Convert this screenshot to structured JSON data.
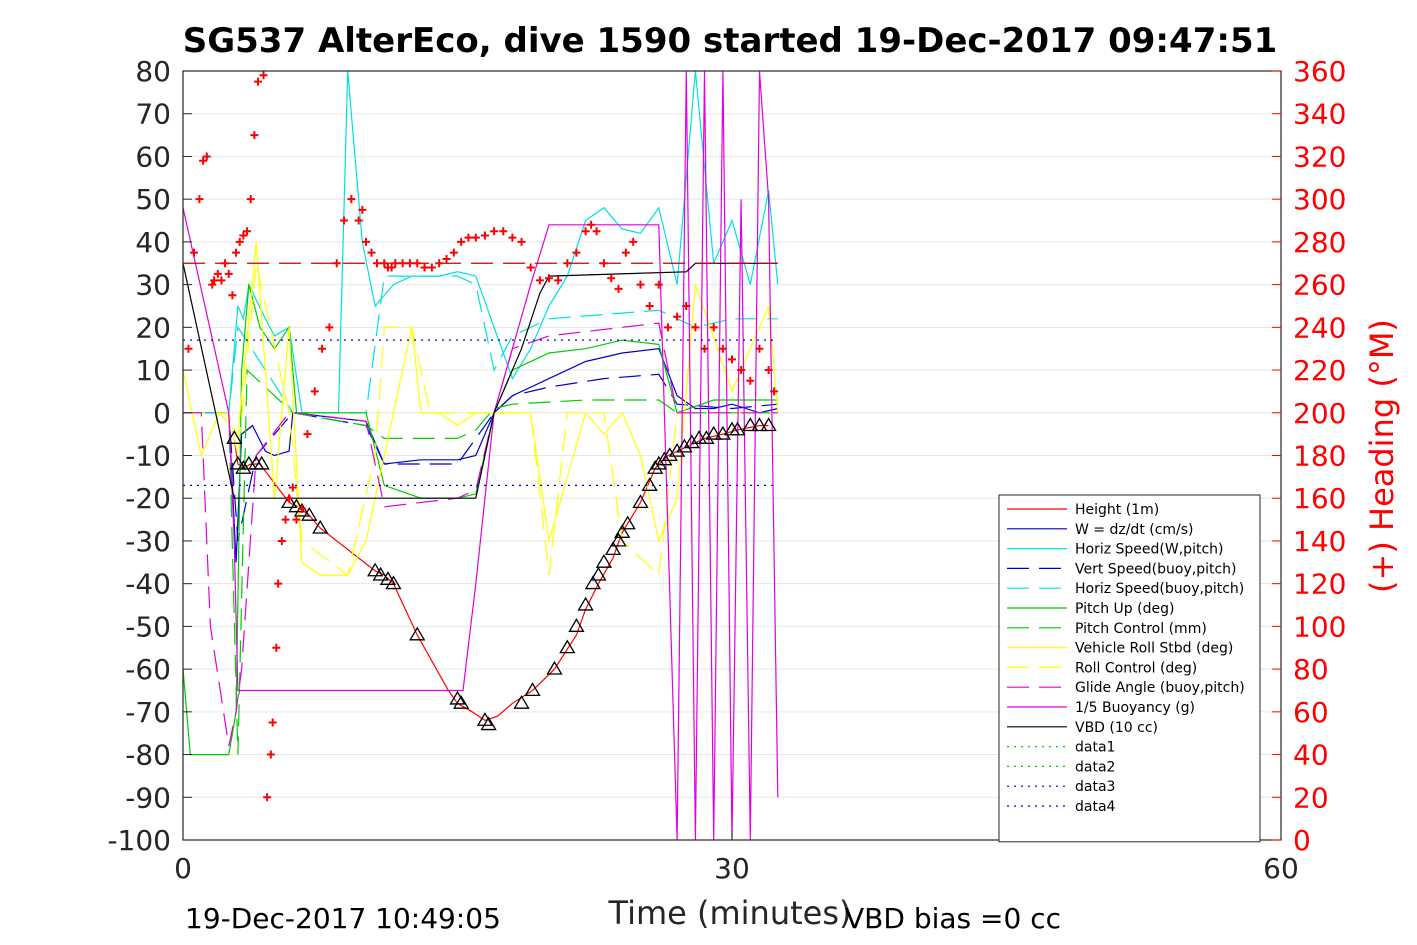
{
  "chart_data": {
    "type": "line",
    "title": "SG537 AlterEco, dive 1590 started 19-Dec-2017 09:47:51",
    "xlabel": "Time (minutes)",
    "ylabel_right": "(+) Heading (°M)",
    "xlim": [
      0,
      60
    ],
    "ylim": [
      -100,
      80
    ],
    "ylim_right": [
      0,
      360
    ],
    "xticks": [
      "0",
      "30",
      "60"
    ],
    "yticks_left": [
      "80",
      "70",
      "60",
      "50",
      "40",
      "30",
      "20",
      "10",
      "0",
      "-10",
      "-20",
      "-30",
      "-40",
      "-50",
      "-60",
      "-70",
      "-80",
      "-90",
      "-100"
    ],
    "yticks_right": [
      "360",
      "340",
      "320",
      "300",
      "280",
      "260",
      "240",
      "220",
      "200",
      "180",
      "160",
      "140",
      "120",
      "100",
      "80",
      "60",
      "40",
      "20",
      "0"
    ],
    "grid": "horizontal",
    "legend_position": "bottom-right",
    "footer_left": "19-Dec-2017 10:49:05",
    "footer_right": "VBD bias =0 cc",
    "series": [
      {
        "name": "Height (1m)",
        "color": "#ff0000",
        "style": "solid",
        "x": [
          2.8,
          3.0,
          3.3,
          3.7,
          4.2,
          5.8,
          6.3,
          6.9,
          7.5,
          10.5,
          11.0,
          11.5,
          12.8,
          14.5,
          15.0,
          15.8,
          16.5,
          17.2,
          18.0,
          19.1,
          20.3,
          21.5,
          22.0,
          22.7,
          23.5,
          24.0,
          25.0,
          25.8,
          26.5,
          27.5,
          28.5,
          29.5,
          30.3,
          31.5,
          32.0
        ],
        "y": [
          -6,
          -12,
          -13,
          -12,
          -12,
          -21,
          -22,
          -24,
          -27,
          -37,
          -38,
          -40,
          -52,
          -65,
          -68,
          -70,
          -72,
          -71,
          -68,
          -65,
          -60,
          -52,
          -46,
          -40,
          -34,
          -28,
          -21,
          -13,
          -10,
          -8,
          -6,
          -5,
          -4,
          -3,
          -3
        ]
      },
      {
        "name": "W = dz/dt (cm/s)",
        "color": "#0000cc",
        "style": "solid",
        "x": [
          0,
          2.5,
          2.9,
          3.2,
          3.8,
          4.5,
          5.0,
          5.8,
          6.0,
          10.0,
          11.0,
          13.0,
          15.0,
          16.0,
          17.0,
          18.0,
          20.0,
          22.0,
          24.0,
          26.0,
          27.0,
          28.0,
          29.0,
          30.0,
          31.5,
          32.5
        ],
        "y": [
          0,
          0,
          -35,
          -5,
          -3,
          -9,
          -10,
          -9,
          0,
          -2,
          -12,
          -11,
          -11,
          -10,
          0,
          4,
          8,
          12,
          14,
          15,
          4,
          1,
          1,
          2,
          0,
          1
        ]
      },
      {
        "name": "Horiz Speed(W,pitch)",
        "color": "#00e0e0",
        "style": "solid",
        "x": [
          0,
          2.5,
          3.0,
          3.3,
          3.6,
          4.5,
          5.0,
          5.8,
          6.5,
          8.5,
          9.0,
          9.8,
          10.5,
          11.5,
          12.5,
          14.0,
          15.0,
          16.0,
          17.0,
          18.0,
          19.0,
          20.0,
          21.0,
          22.0,
          23.0,
          24.0,
          25.0,
          26.0,
          27.0,
          28.0,
          29.0,
          30.0,
          31.0,
          32.0,
          32.5
        ],
        "y": [
          0,
          0,
          25,
          22,
          30,
          22,
          18,
          20,
          0,
          0,
          80,
          40,
          25,
          30,
          32,
          32,
          33,
          32,
          20,
          8,
          15,
          25,
          32,
          45,
          48,
          43,
          42,
          48,
          30,
          80,
          35,
          45,
          30,
          52,
          30
        ]
      },
      {
        "name": "Vert Speed(buoy,pitch)",
        "color": "#0000cc",
        "style": "dashed",
        "x": [
          0,
          2.5,
          3.0,
          4.0,
          6.0,
          10.0,
          11.0,
          15.0,
          16.0,
          17.0,
          18.0,
          20.0,
          23.0,
          26.0,
          27.0,
          30.0,
          32.5
        ],
        "y": [
          0,
          0,
          -30,
          -10,
          0,
          -3,
          -12,
          -12,
          -6,
          0,
          4,
          6,
          8,
          9,
          2,
          1,
          2
        ]
      },
      {
        "name": "Horiz Speed(buoy,pitch)",
        "color": "#00e0e0",
        "style": "dashed",
        "x": [
          0,
          2.5,
          3.0,
          6.0,
          10.0,
          11.0,
          15.0,
          16.0,
          17.0,
          18.0,
          20.0,
          23.0,
          26.0,
          28.0,
          30.0,
          32.5
        ],
        "y": [
          0,
          0,
          20,
          0,
          0,
          32,
          32,
          30,
          10,
          18,
          22,
          23,
          24,
          20,
          22,
          22
        ]
      },
      {
        "name": "Pitch Up (deg)",
        "color": "#00cc00",
        "style": "solid",
        "x": [
          0,
          0.4,
          2.5,
          2.9,
          3.2,
          3.6,
          4.2,
          5.0,
          5.8,
          6.2,
          10.0,
          11.0,
          13.0,
          15.0,
          16.0,
          17.0,
          18.0,
          20.0,
          22.0,
          24.0,
          26.0,
          27.0,
          29.0,
          31.0,
          32.5
        ],
        "y": [
          -60,
          -80,
          -80,
          -70,
          10,
          30,
          20,
          15,
          20,
          0,
          0,
          -17,
          -20,
          -20,
          -19,
          0,
          10,
          14,
          15,
          17,
          16,
          0,
          3,
          3,
          3
        ]
      },
      {
        "name": "Pitch Control (mm)",
        "color": "#00cc00",
        "style": "dashed",
        "x": [
          0,
          2.5,
          3.0,
          3.5,
          6.0,
          10.0,
          11.0,
          15.0,
          16.0,
          17.0,
          18.0,
          22.0,
          26.0,
          27.0,
          32.5
        ],
        "y": [
          0,
          0,
          -80,
          10,
          0,
          -3,
          -6,
          -6,
          -4,
          1,
          2,
          3,
          3,
          0,
          0
        ]
      },
      {
        "name": "Vehicle Roll Stbd (deg)",
        "color": "#ffff00",
        "style": "solid",
        "x": [
          0,
          1.0,
          2.0,
          3.0,
          4.0,
          5.0,
          5.8,
          6.5,
          7.5,
          9.0,
          10.0,
          11.0,
          12.5,
          13.0,
          14.0,
          15.0,
          16.0,
          17.0,
          18.0,
          19.0,
          20.0,
          22.0,
          23.0,
          24.0,
          25.0,
          26.0,
          27.0,
          28.0,
          30.0,
          32.0,
          32.5
        ],
        "y": [
          10,
          -10,
          0,
          -5,
          40,
          -20,
          20,
          -35,
          -38,
          -38,
          -30,
          -10,
          20,
          0,
          0,
          -3,
          0,
          0,
          0,
          0,
          -30,
          0,
          -5,
          0,
          -10,
          -30,
          -20,
          30,
          5,
          25,
          0
        ]
      },
      {
        "name": "Roll Control (deg)",
        "color": "#ffff00",
        "style": "dashed",
        "x": [
          0,
          2.5,
          3.0,
          4.0,
          5.8,
          6.5,
          9.0,
          10.5,
          11.0,
          12.5,
          13.5,
          17.0,
          19.0,
          20.0,
          21.0,
          23.0,
          24.0,
          26.0,
          27.0,
          30.0,
          32.5
        ],
        "y": [
          0,
          0,
          -10,
          35,
          0,
          -30,
          -38,
          -10,
          20,
          20,
          0,
          0,
          0,
          -38,
          0,
          0,
          -30,
          -38,
          0,
          0,
          0
        ]
      },
      {
        "name": "Glide Angle (buoy,pitch)",
        "color": "#e000e0",
        "style": "dashed",
        "x": [
          0,
          1.0,
          1.5,
          2.5,
          2.9,
          3.2,
          4.0,
          5.8,
          6.2,
          10.0,
          11.0,
          15.0,
          16.0,
          17.0,
          18.0,
          20.0,
          24.0,
          26.0,
          27.0,
          32.5
        ],
        "y": [
          0,
          0,
          -50,
          -78,
          -70,
          -60,
          -10,
          0,
          0,
          -2,
          -22,
          -20,
          -18,
          0,
          15,
          18,
          20,
          21,
          0,
          0
        ]
      },
      {
        "name": "1/5 Buoyancy (g)",
        "color": "#e000e0",
        "style": "solid",
        "x": [
          0,
          2.5,
          2.8,
          3.0,
          6.0,
          10.0,
          15.0,
          15.3,
          16.0,
          17.0,
          18.0,
          19.0,
          20.0,
          25.0,
          26.0,
          27.0,
          27.5,
          28.0,
          28.5,
          29.0,
          29.5,
          30.0,
          30.5,
          31.0,
          31.5,
          32.0,
          32.5
        ],
        "y": [
          48,
          0,
          -30,
          -65,
          -65,
          -65,
          -65,
          -65,
          -40,
          0,
          15,
          30,
          44,
          44,
          44,
          -100,
          80,
          -100,
          80,
          -100,
          80,
          -100,
          50,
          -100,
          80,
          50,
          -90
        ]
      },
      {
        "name": "VBD (10 cc)",
        "color": "#000000",
        "style": "solid",
        "x": [
          0,
          2.8,
          6.0,
          15.0,
          16.0,
          17.0,
          18.5,
          19.5,
          20.0,
          27.5,
          28.0,
          32.5
        ],
        "y": [
          35,
          -20,
          -20,
          -20,
          -20,
          0,
          15,
          28,
          32,
          33,
          35,
          35
        ]
      },
      {
        "name": "data1",
        "color": "#00cc00",
        "style": "dotted",
        "x": [],
        "y": []
      },
      {
        "name": "data2",
        "color": "#00cc00",
        "style": "dotted",
        "x": [],
        "y": []
      },
      {
        "name": "data3",
        "color": "#0000cc",
        "style": "dotted",
        "x": [
          0,
          32.5
        ],
        "y": [
          17,
          17
        ]
      },
      {
        "name": "data4",
        "color": "#0000cc",
        "style": "dotted",
        "x": [
          0,
          32.5
        ],
        "y": [
          -17,
          -17
        ]
      }
    ],
    "heading_target": {
      "color": "#cc0000",
      "style": "dashed",
      "value": 270
    },
    "heading_points": {
      "color": "#ff0000",
      "marker": "+",
      "x": [
        0.3,
        0.6,
        0.9,
        1.1,
        1.3,
        1.6,
        1.7,
        1.9,
        2.1,
        2.3,
        2.5,
        2.7,
        2.9,
        3.1,
        3.3,
        3.5,
        3.7,
        3.9,
        4.1,
        4.4,
        4.5,
        4.6,
        4.8,
        4.9,
        5.1,
        5.2,
        5.4,
        5.6,
        5.8,
        6.0,
        6.2,
        6.5,
        6.8,
        7.2,
        7.6,
        8.0,
        8.4,
        8.8,
        9.2,
        9.6,
        9.8,
        10.0,
        10.3,
        10.6,
        11.0,
        11.2,
        11.4,
        11.6,
        12.0,
        12.4,
        12.8,
        13.2,
        13.6,
        14.0,
        14.4,
        14.8,
        15.2,
        15.6,
        16.0,
        16.5,
        17.0,
        17.5,
        18.0,
        18.5,
        19.0,
        19.5,
        20.0,
        20.5,
        21.0,
        21.5,
        22.0,
        22.3,
        22.6,
        23.0,
        23.4,
        23.8,
        24.2,
        24.6,
        25.0,
        25.5,
        26.0,
        26.5,
        27.0,
        27.5,
        28.0,
        28.5,
        29.0,
        29.5,
        30.0,
        30.5,
        31.0,
        31.5,
        32.0,
        32.3
      ],
      "y": [
        230,
        275,
        300,
        318,
        320,
        260,
        262,
        265,
        262,
        270,
        265,
        255,
        275,
        280,
        283,
        285,
        300,
        330,
        355,
        358,
        365,
        20,
        40,
        55,
        90,
        120,
        140,
        150,
        160,
        165,
        150,
        155,
        190,
        210,
        230,
        240,
        270,
        290,
        300,
        290,
        295,
        280,
        275,
        270,
        270,
        268,
        268,
        270,
        270,
        270,
        270,
        268,
        268,
        270,
        272,
        275,
        280,
        282,
        282,
        283,
        285,
        285,
        282,
        280,
        268,
        262,
        263,
        262,
        270,
        275,
        285,
        288,
        285,
        270,
        263,
        258,
        275,
        280,
        260,
        250,
        260,
        240,
        245,
        250,
        240,
        230,
        240,
        230,
        225,
        220,
        215,
        230,
        220,
        210
      ]
    },
    "attitude_markers": {
      "color": "#000000",
      "marker": "triangle",
      "x": [
        2.8,
        3.0,
        3.3,
        3.6,
        4.0,
        4.3,
        5.8,
        6.2,
        6.5,
        6.9,
        7.5,
        10.5,
        10.8,
        11.2,
        11.5,
        12.8,
        15.0,
        15.2,
        16.5,
        16.7,
        18.5,
        19.1,
        20.3,
        21.0,
        21.5,
        22.0,
        22.4,
        22.7,
        23.0,
        23.5,
        23.8,
        24.0,
        24.3,
        25.0,
        25.5,
        25.8,
        26.0,
        26.3,
        26.6,
        27.0,
        27.4,
        27.8,
        28.2,
        28.6,
        29.0,
        29.5,
        30.0,
        30.3,
        31.0,
        31.5,
        32.0
      ],
      "y": [
        -6,
        -12,
        -13,
        -12,
        -12,
        -12,
        -21,
        -22,
        -23,
        -24,
        -27,
        -37,
        -38,
        -39,
        -40,
        -52,
        -67,
        -68,
        -72,
        -73,
        -68,
        -65,
        -60,
        -55,
        -50,
        -45,
        -40,
        -38,
        -35,
        -32,
        -30,
        -28,
        -26,
        -21,
        -17,
        -13,
        -12,
        -11,
        -10,
        -9,
        -8,
        -7,
        -6,
        -6,
        -5,
        -5,
        -4,
        -4,
        -3,
        -3,
        -3
      ]
    }
  }
}
